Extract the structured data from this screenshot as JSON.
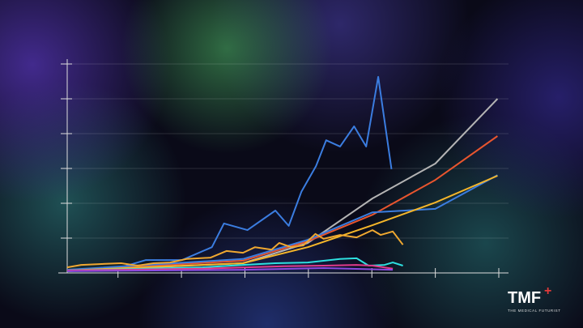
{
  "chart_data": {
    "type": "line",
    "xlim": [
      0.2,
      7
    ],
    "xticks": [
      1,
      2,
      3,
      4,
      5,
      6,
      7
    ],
    "ylim": [
      0,
      6
    ],
    "yticks": [
      0,
      1,
      2,
      3,
      4,
      5,
      6
    ],
    "grid": true,
    "series": [
      {
        "color": "#3b7de0",
        "x": [
          0.2,
          1.05,
          1.44,
          2.01,
          2.48,
          2.67,
          3.04,
          3.48,
          3.69,
          3.89,
          4.12,
          4.28,
          4.5,
          4.72,
          4.91,
          5.1,
          5.31
        ],
        "values": [
          0.09,
          0.16,
          0.37,
          0.37,
          0.74,
          1.42,
          1.23,
          1.79,
          1.35,
          2.33,
          3.07,
          3.81,
          3.63,
          4.21,
          3.63,
          5.63,
          2.98
        ]
      },
      {
        "color": "#b4b4b4",
        "x": [
          0.2,
          2.97,
          3.99,
          5.01,
          6.0,
          6.98
        ],
        "values": [
          0.05,
          0.28,
          0.86,
          2.14,
          3.14,
          5.0
        ]
      },
      {
        "color": "#e8552e",
        "x": [
          0.2,
          2.97,
          3.99,
          5.01,
          6.0,
          6.98
        ],
        "values": [
          0.07,
          0.35,
          0.91,
          1.67,
          2.67,
          3.93
        ]
      },
      {
        "color": "#3b7de0",
        "x": [
          0.2,
          2.97,
          3.99,
          5.01,
          6.0,
          6.98
        ],
        "values": [
          0.09,
          0.4,
          0.95,
          1.74,
          1.84,
          2.81
        ]
      },
      {
        "color": "#f5b62a",
        "x": [
          0.2,
          2.97,
          3.99,
          5.01,
          6.0,
          6.98
        ],
        "values": [
          0.07,
          0.28,
          0.74,
          1.37,
          2.02,
          2.79
        ]
      },
      {
        "color": "#f0a830",
        "x": [
          0.2,
          0.42,
          0.8,
          1.05,
          1.31,
          1.56,
          1.82,
          2.08,
          2.46,
          2.71,
          2.97,
          3.16,
          3.42,
          3.54,
          3.73,
          3.92,
          4.11,
          4.24,
          4.5,
          4.76,
          5.01,
          5.14,
          5.33,
          5.49
        ],
        "values": [
          0.16,
          0.23,
          0.26,
          0.28,
          0.21,
          0.28,
          0.3,
          0.4,
          0.44,
          0.63,
          0.58,
          0.74,
          0.67,
          0.86,
          0.74,
          0.79,
          1.12,
          0.98,
          1.09,
          1.02,
          1.23,
          1.09,
          1.19,
          0.81
        ]
      },
      {
        "color": "#2ee0e0",
        "x": [
          0.2,
          2.33,
          2.97,
          3.48,
          3.99,
          4.5,
          4.76,
          4.95,
          5.2,
          5.33,
          5.49
        ],
        "values": [
          0.07,
          0.16,
          0.23,
          0.28,
          0.3,
          0.4,
          0.42,
          0.21,
          0.23,
          0.3,
          0.21
        ]
      },
      {
        "color": "#e03a8a",
        "x": [
          0.2,
          2.33,
          3.61,
          4.24,
          4.76,
          5.01,
          5.33
        ],
        "values": [
          0.07,
          0.12,
          0.19,
          0.21,
          0.23,
          0.21,
          0.12
        ]
      },
      {
        "color": "#8a4ae0",
        "x": [
          0.2,
          2.97,
          4.24,
          5.33
        ],
        "values": [
          0.05,
          0.09,
          0.14,
          0.09
        ]
      }
    ]
  },
  "logo": {
    "name": "TMF",
    "plus": "+",
    "tagline": "THE MEDICAL FUTURIST"
  }
}
